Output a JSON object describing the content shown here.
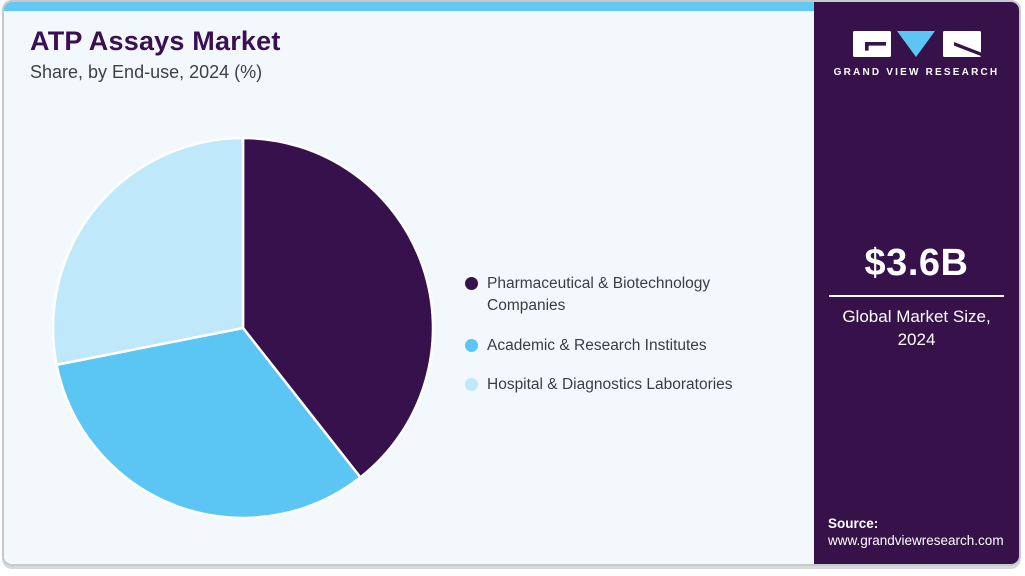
{
  "header": {
    "title": "ATP Assays Market",
    "subtitle": "Share, by End-use, 2024 (%)"
  },
  "chart_data": {
    "type": "pie",
    "title": "ATP Assays Market Share, by End-use, 2024 (%)",
    "categories": [
      "Pharmaceutical & Biotechnology Companies",
      "Academic & Research Institutes",
      "Hospital & Diagnostics Laboratories"
    ],
    "values": [
      39.4,
      32.5,
      28.1
    ],
    "unit": "%",
    "colors": [
      "#36114c",
      "#5bc6f3",
      "#bfe9fb"
    ],
    "legend_position": "right",
    "start_angle_deg": 0,
    "direction": "clockwise",
    "data_labels_shown": false
  },
  "sidebar": {
    "logo_text": "GRAND VIEW RESEARCH",
    "market_size_value": "$3.6B",
    "market_size_label_line1": "Global Market Size,",
    "market_size_label_line2": "2024",
    "source_label": "Source:",
    "source_url": "www.grandviewresearch.com"
  },
  "colors": {
    "accent_blue": "#62c9f2",
    "brand_dark_purple": "#37114a",
    "panel_background": "#f2f8fb",
    "title_purple": "#3a1053"
  }
}
